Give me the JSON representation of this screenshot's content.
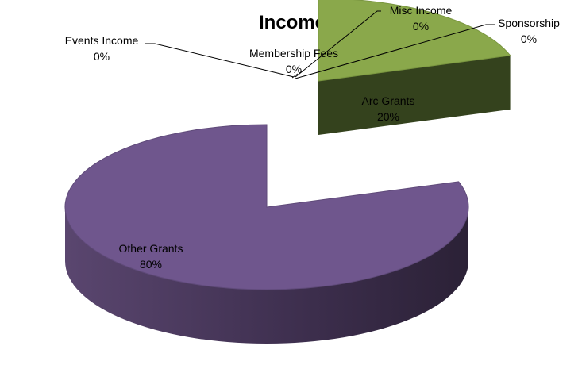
{
  "chart_data": {
    "type": "pie",
    "title": "Income",
    "slices": [
      {
        "label": "Arc Grants",
        "value": 20,
        "pct_label": "20%",
        "color": "#8aa84b"
      },
      {
        "label": "Other Grants",
        "value": 80,
        "pct_label": "80%",
        "color": "#6f568d"
      },
      {
        "label": "Events Income",
        "value": 0,
        "pct_label": "0%"
      },
      {
        "label": "Membership Fees",
        "value": 0,
        "pct_label": "0%"
      },
      {
        "label": "Misc Income",
        "value": 0,
        "pct_label": "0%"
      },
      {
        "label": "Sponsorship",
        "value": 0,
        "pct_label": "0%"
      }
    ],
    "style": "3d-exploded",
    "legend": "none"
  }
}
